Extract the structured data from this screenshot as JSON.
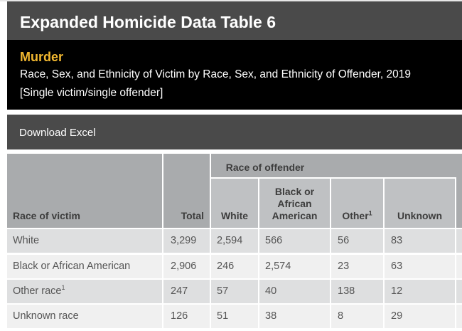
{
  "header": {
    "title": "Expanded Homicide Data Table 6"
  },
  "subheader": {
    "label": "Murder",
    "description": "Race, Sex, and Ethnicity of Victim by Race, Sex, and Ethnicity of Offender, 2019",
    "note": "[Single victim/single offender]"
  },
  "download": {
    "label": "Download Excel"
  },
  "table": {
    "group_header": "Race of offender",
    "col_victim": "Race of victim",
    "col_total": "Total",
    "col_white": "White",
    "col_black": [
      "Black or",
      "African",
      "American"
    ],
    "col_other": "Other",
    "col_other_sup": "1",
    "col_unknown": "Unknown",
    "rows": [
      {
        "victim": "White",
        "sup": "",
        "total": "3,299",
        "white": "2,594",
        "black": "566",
        "other": "56",
        "unknown": "83"
      },
      {
        "victim": "Black or African American",
        "sup": "",
        "total": "2,906",
        "white": "246",
        "black": "2,574",
        "other": "23",
        "unknown": "63"
      },
      {
        "victim": "Other race",
        "sup": "1",
        "total": "247",
        "white": "57",
        "black": "40",
        "other": "138",
        "unknown": "12"
      },
      {
        "victim": "Unknown race",
        "sup": "",
        "total": "126",
        "white": "51",
        "black": "38",
        "other": "8",
        "unknown": "29"
      }
    ]
  }
}
